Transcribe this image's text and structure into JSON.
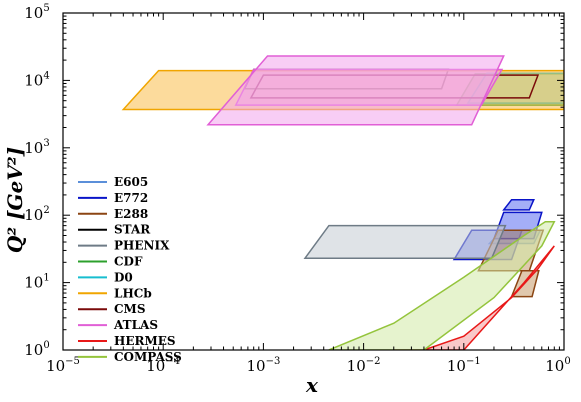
{
  "chart_data": {
    "type": "area",
    "title": "",
    "xlabel": "x",
    "ylabel": "Q² [GeV²]",
    "xscale": "log",
    "yscale": "log",
    "xlim": [
      1e-05,
      1
    ],
    "ylim": [
      1,
      100000
    ],
    "x_ticks": [
      {
        "base": "10",
        "exp": "−5",
        "value": 1e-05
      },
      {
        "base": "10",
        "exp": "−4",
        "value": 0.0001
      },
      {
        "base": "10",
        "exp": "−3",
        "value": 0.001
      },
      {
        "base": "10",
        "exp": "−2",
        "value": 0.01
      },
      {
        "base": "10",
        "exp": "−1",
        "value": 0.1
      },
      {
        "base": "10",
        "exp": "0",
        "value": 1
      }
    ],
    "y_ticks": [
      {
        "base": "10",
        "exp": "0",
        "value": 1
      },
      {
        "base": "10",
        "exp": "1",
        "value": 10
      },
      {
        "base": "10",
        "exp": "2",
        "value": 100
      },
      {
        "base": "10",
        "exp": "3",
        "value": 1000
      },
      {
        "base": "10",
        "exp": "4",
        "value": 10000
      },
      {
        "base": "10",
        "exp": "5",
        "value": 100000
      }
    ],
    "grid": false,
    "legend_position": "left",
    "series": [
      {
        "name": "E605",
        "color": "#5b8fd9",
        "fill": "#9dc3ee",
        "regions": [
          [
            [
              0.18,
              38
            ],
            [
              0.5,
              38
            ],
            [
              0.58,
              60
            ],
            [
              0.24,
              60
            ]
          ]
        ]
      },
      {
        "name": "E772",
        "color": "#0a14c8",
        "fill": "#5a6cf0",
        "regions": [
          [
            [
              0.08,
              22
            ],
            [
              0.3,
              22
            ],
            [
              0.38,
              60
            ],
            [
              0.12,
              60
            ]
          ],
          [
            [
              0.2,
              45
            ],
            [
              0.5,
              45
            ],
            [
              0.6,
              110
            ],
            [
              0.25,
              110
            ]
          ],
          [
            [
              0.25,
              120
            ],
            [
              0.45,
              120
            ],
            [
              0.5,
              170
            ],
            [
              0.3,
              170
            ]
          ]
        ]
      },
      {
        "name": "E288",
        "color": "#8b4513",
        "fill": "#c79a6a",
        "regions": [
          [
            [
              0.14,
              15
            ],
            [
              0.45,
              15
            ],
            [
              0.62,
              60
            ],
            [
              0.22,
              60
            ]
          ],
          [
            [
              0.3,
              6.2
            ],
            [
              0.48,
              6.2
            ],
            [
              0.56,
              15
            ],
            [
              0.38,
              15
            ]
          ]
        ]
      },
      {
        "name": "STAR",
        "color": "#000000",
        "fill": "none",
        "regions": [
          [
            [
              0.00065,
              7500
            ],
            [
              0.06,
              7500
            ],
            [
              0.07,
              14500
            ],
            [
              0.0008,
              14500
            ]
          ]
        ]
      },
      {
        "name": "PHENIX",
        "color": "#6e7b86",
        "fill": "#c4ccd4",
        "regions": [
          [
            [
              0.0026,
              23
            ],
            [
              0.19,
              23
            ],
            [
              0.26,
              70
            ],
            [
              0.0045,
              70
            ]
          ]
        ]
      },
      {
        "name": "CDF",
        "color": "#2ca02c",
        "fill": "#8fcf8f",
        "regions": [
          [
            [
              0.085,
              4300
            ],
            [
              1.0,
              4300
            ],
            [
              1.0,
              12500
            ],
            [
              0.13,
              12500
            ]
          ]
        ]
      },
      {
        "name": "D0",
        "color": "#17becf",
        "fill": "#9ee6ee",
        "regions": [
          [
            [
              0.11,
              4600
            ],
            [
              1.0,
              4600
            ],
            [
              1.0,
              12800
            ],
            [
              0.17,
              12800
            ]
          ]
        ]
      },
      {
        "name": "LHCb",
        "color": "#f0a500",
        "fill": "#f9bd4a",
        "regions": [
          [
            [
              4e-05,
              3700
            ],
            [
              1.0,
              3700
            ],
            [
              1.0,
              14000
            ],
            [
              9e-05,
              14000
            ]
          ]
        ]
      },
      {
        "name": "CMS",
        "color": "#7a0a0a",
        "fill": "none",
        "regions": [
          [
            [
              0.00075,
              5500
            ],
            [
              0.45,
              5500
            ],
            [
              0.55,
              12000
            ],
            [
              0.001,
              12000
            ]
          ]
        ]
      },
      {
        "name": "ATLAS",
        "color": "#e15fd6",
        "fill": "#f2a4ec",
        "regions": [
          [
            [
              0.00053,
              4300
            ],
            [
              0.15,
              4300
            ],
            [
              0.24,
              14500
            ],
            [
              0.0008,
              14500
            ]
          ],
          [
            [
              0.00028,
              2200
            ],
            [
              0.12,
              2200
            ],
            [
              0.25,
              23000
            ],
            [
              0.0011,
              23000
            ]
          ]
        ]
      },
      {
        "name": "HERMES",
        "color": "#e81818",
        "fill": "#f49b9b",
        "regions": [
          [
            [
              0.02,
              1
            ],
            [
              0.1,
              1
            ],
            [
              0.4,
              10
            ],
            [
              0.8,
              35
            ],
            [
              0.55,
              16
            ],
            [
              0.3,
              6
            ],
            [
              0.1,
              1.6
            ],
            [
              0.04,
              1
            ]
          ]
        ]
      },
      {
        "name": "COMPASS",
        "color": "#94c43c",
        "fill": "#d2e9a5",
        "regions": [
          [
            [
              0.0045,
              1
            ],
            [
              0.04,
              1
            ],
            [
              0.2,
              6
            ],
            [
              0.6,
              35
            ],
            [
              0.8,
              80
            ],
            [
              0.65,
              80
            ],
            [
              0.4,
              50
            ],
            [
              0.1,
              12
            ],
            [
              0.02,
              2.5
            ],
            [
              0.0045,
              1
            ]
          ]
        ]
      }
    ]
  }
}
